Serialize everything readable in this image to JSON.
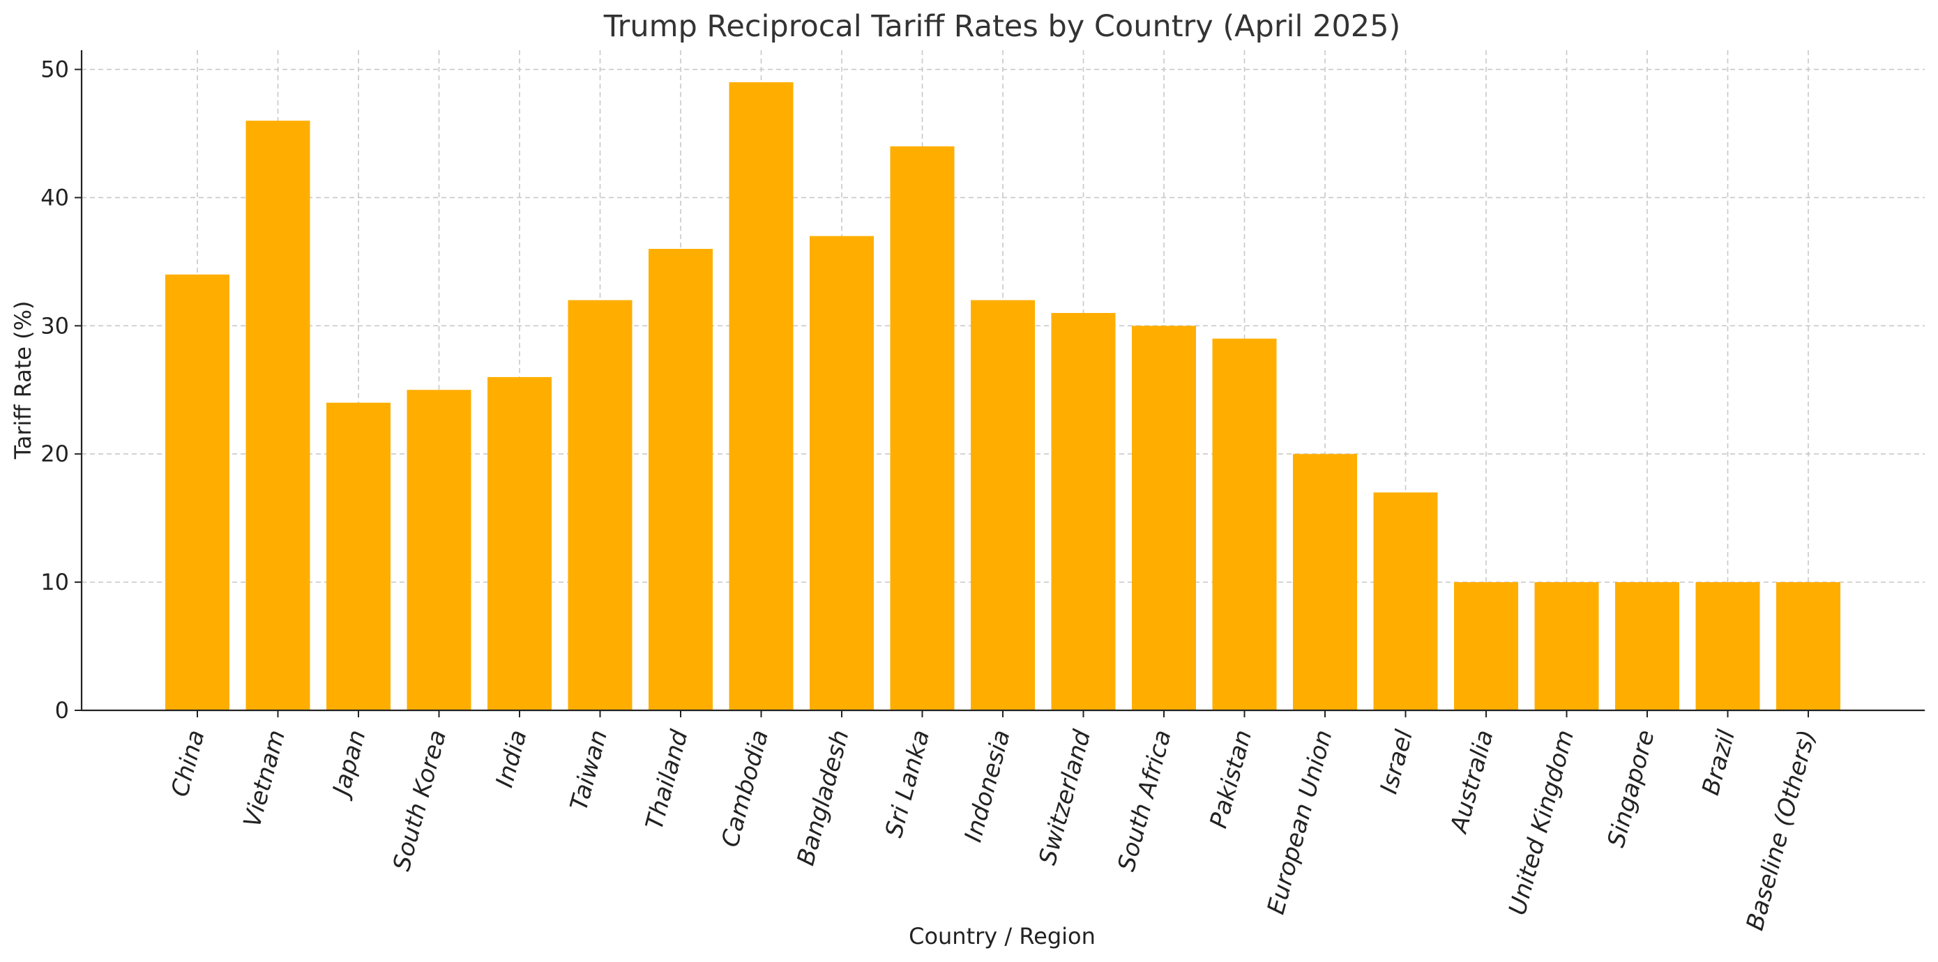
{
  "chart_data": {
    "type": "bar",
    "title": "Trump Reciprocal Tariff Rates by Country (April 2025)",
    "xlabel": "Country / Region",
    "ylabel": "Tariff Rate (%)",
    "categories": [
      "China",
      "Vietnam",
      "Japan",
      "South Korea",
      "India",
      "Taiwan",
      "Thailand",
      "Cambodia",
      "Bangladesh",
      "Sri Lanka",
      "Indonesia",
      "Switzerland",
      "South Africa",
      "Pakistan",
      "European Union",
      "Israel",
      "Australia",
      "United Kingdom",
      "Singapore",
      "Brazil",
      "Baseline (Others)"
    ],
    "values": [
      34,
      46,
      24,
      25,
      26,
      32,
      36,
      49,
      37,
      44,
      32,
      31,
      30,
      29,
      20,
      17,
      10,
      10,
      10,
      10,
      10
    ],
    "ylim": [
      0,
      51.5
    ],
    "yticks": [
      0,
      10,
      20,
      30,
      40,
      50
    ],
    "grid": true,
    "bar_color": "#FFAE00"
  }
}
